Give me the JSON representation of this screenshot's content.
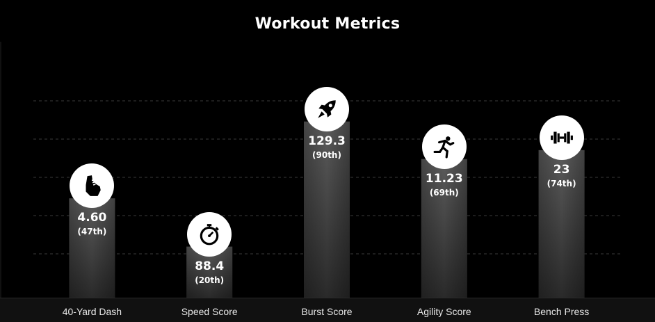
{
  "chart_data": {
    "type": "bar",
    "title": "Workout Metrics",
    "xlabel": "",
    "ylabel": "",
    "grid": true,
    "categories": [
      "40-Yard Dash",
      "Speed Score",
      "Burst Score",
      "Agility Score",
      "Bench Press"
    ],
    "values": [
      4.6,
      88.4,
      129.3,
      11.23,
      23
    ],
    "value_labels": [
      "4.60",
      "88.4",
      "129.3",
      "11.23",
      "23"
    ],
    "percentiles": [
      47,
      20,
      90,
      69,
      74
    ],
    "percentile_labels": [
      "(47th)",
      "(20th)",
      "(90th)",
      "(69th)",
      "(74th)"
    ],
    "icons": [
      "running-shoe-icon",
      "stopwatch-icon",
      "rocket-icon",
      "sprinter-icon",
      "dumbbell-icon"
    ],
    "ylim": [
      0,
      100
    ]
  },
  "colors": {
    "background": "#000000",
    "bar_top": "#5a5a5a",
    "bar_bottom": "#2b2b2b",
    "grid": "#3a3a3a",
    "text": "#ffffff"
  }
}
